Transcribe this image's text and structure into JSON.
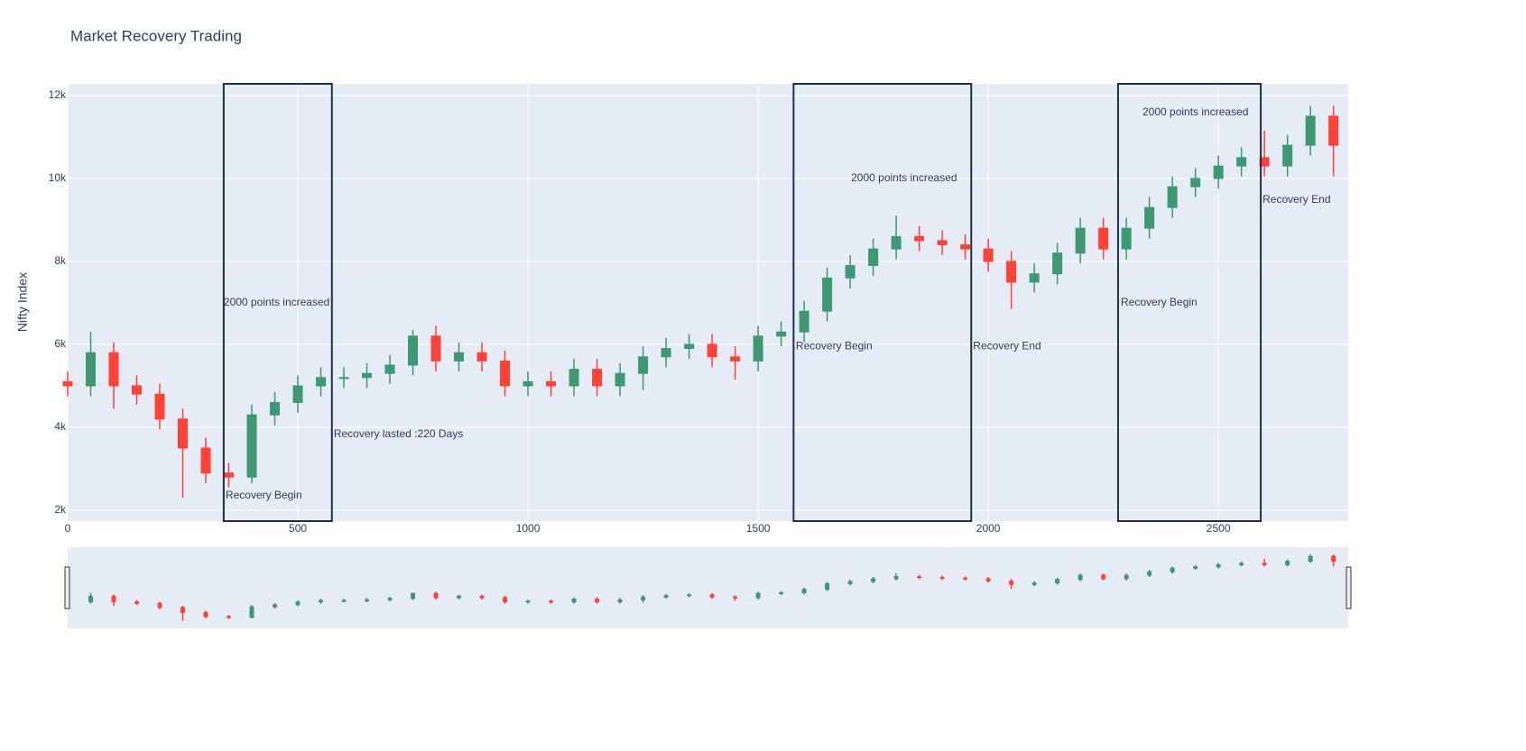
{
  "chart_data": {
    "type": "candlestick",
    "title": "Market Recovery Trading",
    "y_label": "Nifty Index",
    "increasing_color": "#3d9970",
    "decreasing_color": "#ff4136",
    "grid": true,
    "rangeslider": true,
    "xlim": [
      0,
      2782
    ],
    "ylim": [
      1740,
      12280
    ],
    "xticks": [
      0,
      500,
      1000,
      1500,
      2000,
      2500
    ],
    "yticks": [
      {
        "value": 2000,
        "label": "2k"
      },
      {
        "value": 4000,
        "label": "4k"
      },
      {
        "value": 6000,
        "label": "6k"
      },
      {
        "value": 8000,
        "label": "8k"
      },
      {
        "value": 10000,
        "label": "10k"
      },
      {
        "value": 12000,
        "label": "12k"
      }
    ],
    "x": [
      0,
      50,
      100,
      150,
      200,
      250,
      300,
      350,
      400,
      450,
      500,
      550,
      600,
      650,
      700,
      750,
      800,
      850,
      900,
      950,
      1000,
      1050,
      1100,
      1150,
      1200,
      1250,
      1300,
      1350,
      1400,
      1450,
      1500,
      1550,
      1600,
      1650,
      1700,
      1750,
      1800,
      1850,
      1900,
      1950,
      2000,
      2050,
      2100,
      2150,
      2200,
      2250,
      2300,
      2350,
      2400,
      2450,
      2500,
      2550,
      2600,
      2650,
      2700,
      2750
    ],
    "open": [
      5100,
      5000,
      5800,
      5000,
      4800,
      4200,
      3500,
      2900,
      2800,
      4300,
      4600,
      5000,
      5200,
      5200,
      5300,
      5500,
      6200,
      5600,
      5800,
      5600,
      5000,
      5100,
      5000,
      5400,
      5000,
      5300,
      5700,
      5900,
      6000,
      5700,
      5600,
      6200,
      6300,
      6800,
      7600,
      7900,
      8300,
      8600,
      8500,
      8400,
      8300,
      8000,
      7500,
      7700,
      8200,
      8800,
      8300,
      8800,
      9300,
      9800,
      10000,
      10300,
      10500,
      10300,
      10800,
      11500
    ],
    "high": [
      5350,
      6300,
      6050,
      5250,
      5050,
      4450,
      3750,
      3150,
      4550,
      4850,
      5250,
      5450,
      5450,
      5550,
      5750,
      6350,
      6450,
      6050,
      6050,
      5850,
      5350,
      5350,
      5650,
      5650,
      5550,
      5950,
      6150,
      6250,
      6250,
      5950,
      6450,
      6550,
      7050,
      7850,
      8150,
      8550,
      9100,
      8850,
      8750,
      8650,
      8550,
      8250,
      7950,
      8450,
      9050,
      9050,
      9050,
      9550,
      10050,
      10250,
      10550,
      10750,
      11150,
      11050,
      11750,
      11750
    ],
    "low": [
      4750,
      4750,
      4450,
      4550,
      3950,
      2300,
      2650,
      2550,
      2650,
      4050,
      4350,
      4750,
      4950,
      4950,
      5050,
      5250,
      5350,
      5350,
      5350,
      4750,
      4750,
      4750,
      4750,
      4750,
      4750,
      4900,
      5450,
      5650,
      5450,
      5150,
      5350,
      5950,
      6050,
      6550,
      7350,
      7650,
      8050,
      8250,
      8150,
      8050,
      7750,
      6850,
      7250,
      7450,
      7950,
      8050,
      8050,
      8550,
      9050,
      9550,
      9750,
      10050,
      10050,
      10050,
      10550,
      10050
    ],
    "close": [
      5000,
      5800,
      5000,
      4800,
      4200,
      3500,
      2900,
      2800,
      4300,
      4600,
      5000,
      5200,
      5200,
      5300,
      5500,
      6200,
      5600,
      5800,
      5600,
      5000,
      5100,
      5000,
      5400,
      5000,
      5300,
      5700,
      5900,
      6000,
      5700,
      5600,
      6200,
      6300,
      6800,
      7600,
      7900,
      8300,
      8600,
      8500,
      8400,
      8300,
      8000,
      7500,
      7700,
      8200,
      8800,
      8300,
      8800,
      9300,
      9800,
      10000,
      10300,
      10500,
      10300,
      10800,
      11500,
      10800
    ],
    "shapes": [
      {
        "x0": 339,
        "x1": 574
      },
      {
        "x0": 1577,
        "x1": 1963
      },
      {
        "x0": 2282,
        "x1": 2592
      }
    ],
    "annotations": [
      {
        "text": "2000 points increased",
        "x": 339,
        "y": 7000
      },
      {
        "text": "Recovery Begin",
        "x": 343,
        "y": 2350
      },
      {
        "text": "Recovery lasted :220 Days",
        "x": 578,
        "y": 3830
      },
      {
        "text": "2000 points increased",
        "x": 1702,
        "y": 10000
      },
      {
        "text": "Recovery Begin",
        "x": 1582,
        "y": 5950
      },
      {
        "text": "Recovery End",
        "x": 1967,
        "y": 5950
      },
      {
        "text": "2000 points increased",
        "x": 2335,
        "y": 11590
      },
      {
        "text": "Recovery Begin",
        "x": 2288,
        "y": 7000
      },
      {
        "text": "Recovery End",
        "x": 2596,
        "y": 9480
      }
    ]
  }
}
